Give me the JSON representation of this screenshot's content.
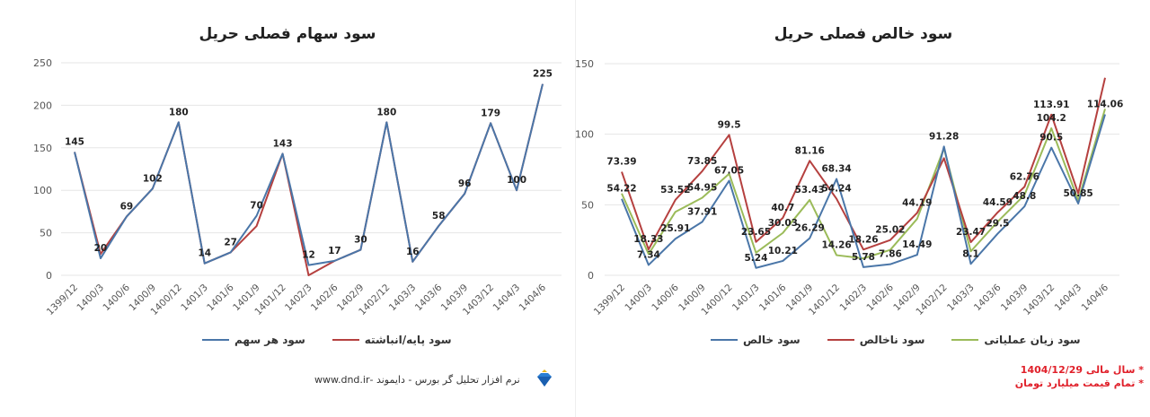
{
  "colors": {
    "blue": "#4a76a8",
    "red": "#b5403f",
    "green": "#9bbb59",
    "grid": "#e6e6e6"
  },
  "chart_data": [
    {
      "type": "line",
      "title": "سود سهام فصلی حریل",
      "categories": [
        "1399/12",
        "1400/3",
        "1400/6",
        "1400/9",
        "1400/12",
        "1401/3",
        "1401/6",
        "1401/9",
        "1401/12",
        "1402/3",
        "1402/6",
        "1402/9",
        "1402/12",
        "1403/3",
        "1403/6",
        "1403/9",
        "1403/12",
        "1404/3",
        "1404/6"
      ],
      "ylim": [
        0,
        250
      ],
      "yticks": [
        0,
        50,
        100,
        150,
        200,
        250
      ],
      "grid": true,
      "legend": "bottom",
      "series": [
        {
          "name": "سود هر سهم",
          "color": "#4a76a8",
          "values": [
            145,
            20,
            69,
            102,
            180,
            14,
            27,
            70,
            143,
            12,
            17,
            30,
            180,
            16,
            58,
            96,
            179,
            100,
            225
          ],
          "labels": [
            "145",
            "20",
            "69",
            "102",
            "180",
            "14",
            "27",
            "70",
            "143",
            "12",
            "17",
            "30",
            "180",
            "16",
            "58",
            "96",
            "179",
            "100",
            "225"
          ]
        },
        {
          "name": "سود پایه/انباشته",
          "color": "#b5403f",
          "values": [
            145,
            25,
            69,
            102,
            180,
            14,
            27,
            58,
            143,
            0,
            17,
            30,
            180,
            16,
            58,
            96,
            179,
            100,
            225
          ],
          "labels": []
        }
      ]
    },
    {
      "type": "line",
      "title": "سود خالص فصلی حریل",
      "categories": [
        "1399/12",
        "1400/3",
        "1400/6",
        "1400/9",
        "1400/12",
        "1401/3",
        "1401/6",
        "1401/9",
        "1401/12",
        "1402/3",
        "1402/6",
        "1402/9",
        "1402/12",
        "1403/3",
        "1403/6",
        "1403/9",
        "1403/12",
        "1404/3",
        "1404/6"
      ],
      "ylim": [
        0,
        150
      ],
      "yticks": [
        0,
        50,
        100,
        150
      ],
      "grid": true,
      "legend": "bottom",
      "series": [
        {
          "name": "سود خالص",
          "color": "#4a76a8",
          "values": [
            54.22,
            7.34,
            25.91,
            37.91,
            67.05,
            5.24,
            10.21,
            26.29,
            68.34,
            5.78,
            7.86,
            14.49,
            91.28,
            8.1,
            29.5,
            48.8,
            90.5,
            50.85,
            114.06
          ],
          "labels": [
            "54.22",
            "7.34",
            "25.91",
            "37.91",
            "67.05",
            "5.24",
            "10.21",
            "26.29",
            "68.34",
            "5.78",
            "7.86",
            "14.49",
            "91.28",
            "8.1",
            "29.5",
            "48.8",
            "90.5",
            "50.85",
            "114.06"
          ]
        },
        {
          "name": "سود ناخالص",
          "color": "#b5403f",
          "values": [
            73.39,
            18.33,
            53.52,
            73.85,
            99.5,
            23.65,
            40.7,
            81.16,
            54.24,
            18.26,
            25.02,
            44.19,
            83,
            23.47,
            44.59,
            62.76,
            113.91,
            58,
            140
          ],
          "labels": [
            "73.39",
            "18.33",
            "53.52",
            "73.85",
            "99.5",
            "23.65",
            "40.7",
            "81.16",
            "54.24",
            "18.26",
            "25.02",
            "44.19",
            null,
            "23.47",
            "44.59",
            "62.76",
            "113.91",
            null,
            null
          ]
        },
        {
          "name": "سود زیان عملیاتی",
          "color": "#9bbb59",
          "values": [
            58,
            15,
            45,
            54.95,
            72,
            16,
            30.03,
            53.43,
            14.26,
            12,
            18,
            40,
            90,
            17,
            38,
            57,
            104.2,
            53,
            118
          ],
          "labels": [
            null,
            null,
            null,
            "54.95",
            null,
            null,
            "30.03",
            "53.43",
            "14.26",
            null,
            null,
            null,
            null,
            null,
            null,
            null,
            "104.2",
            null,
            null
          ]
        }
      ]
    }
  ],
  "footer": {
    "software": "نرم افزار تحلیل گر بورس - دایموند -www.dnd.ir",
    "logo": "diamond-logo"
  },
  "notes": [
    "* سال مالی 1404/12/29",
    "* تمام قیمت میلیارد تومان"
  ]
}
